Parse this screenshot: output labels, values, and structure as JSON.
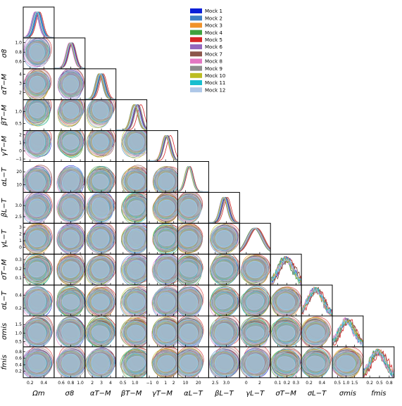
{
  "chart_data": {
    "type": "corner",
    "parameters": [
      {
        "label": "Ωm",
        "sub": "m",
        "range": [
          0.1,
          0.55
        ],
        "ticks": [
          0.2,
          0.4
        ],
        "tick_labels": [
          "0.2",
          "0.4"
        ]
      },
      {
        "label": "σ8",
        "sub": "8",
        "range": [
          0.45,
          1.1
        ],
        "ticks": [
          0.6,
          0.8,
          1.0
        ],
        "tick_labels": [
          "0.6",
          "0.8",
          "1.0"
        ]
      },
      {
        "label": "αT−M",
        "sub": "T−M",
        "range": [
          1.2,
          4.6
        ],
        "ticks": [
          2,
          3,
          4
        ],
        "tick_labels": [
          "2",
          "3",
          "4"
        ]
      },
      {
        "label": "βT−M",
        "sub": "T−M",
        "range": [
          0.2,
          1.5
        ],
        "ticks": [
          0.5,
          1.0
        ],
        "tick_labels": [
          "0.5",
          "1.0"
        ]
      },
      {
        "label": "γT−M",
        "sub": "T−M",
        "range": [
          -1.3,
          2.5
        ],
        "ticks": [
          -1,
          0,
          1,
          2
        ],
        "tick_labels": [
          "−1",
          "0",
          "1",
          "2"
        ]
      },
      {
        "label": "αL−T",
        "sub": "L−T",
        "range": [
          4,
          28
        ],
        "ticks": [
          10,
          20
        ],
        "tick_labels": [
          "10",
          "20"
        ]
      },
      {
        "label": "βL−T",
        "sub": "L−T",
        "range": [
          2.2,
          3.6
        ],
        "ticks": [
          2.5,
          3.0
        ],
        "tick_labels": [
          "2.5",
          "3.0"
        ]
      },
      {
        "label": "γL−T",
        "sub": "L−T",
        "range": [
          -1.0,
          3.6
        ],
        "ticks": [
          0,
          2
        ],
        "tick_labels": [
          "0",
          "2"
        ]
      },
      {
        "label": "σT−M",
        "sub": "T−M",
        "range": [
          0.02,
          0.36
        ],
        "ticks": [
          0.1,
          0.2,
          0.3
        ],
        "tick_labels": [
          "0.1",
          "0.2",
          "0.3"
        ]
      },
      {
        "label": "σL−T",
        "sub": "L−T",
        "range": [
          0.08,
          0.56
        ],
        "ticks": [
          0.2,
          0.4
        ],
        "tick_labels": [
          "0.2",
          "0.4"
        ]
      },
      {
        "label": "σmis",
        "sub": "mis",
        "range": [
          0.2,
          2.0
        ],
        "ticks": [
          0.5,
          1.0,
          1.5
        ],
        "tick_labels": [
          "0.5",
          "1.0",
          "1.5"
        ]
      },
      {
        "label": "fmis",
        "sub": "mis",
        "range": [
          0.0,
          0.95
        ],
        "ticks": [
          0.2,
          0.5,
          0.8
        ],
        "tick_labels": [
          "0.2",
          "0.5",
          "0.8"
        ]
      }
    ],
    "y_tick_labels": {
      "1": [
        "0.6",
        "0.8",
        "1.0"
      ],
      "2": [
        "2",
        "3",
        "4"
      ],
      "3": [
        "0.5",
        "1.0"
      ],
      "4": [
        "−1",
        "0",
        "1",
        "2"
      ],
      "5": [
        "10",
        "20"
      ],
      "6": [
        "2.5",
        "3.0"
      ],
      "7": [
        "0",
        "1",
        "2",
        "3"
      ],
      "8": [
        "0.1",
        "0.2",
        "0.3"
      ],
      "9": [
        "0.2",
        "0.4"
      ],
      "10": [
        "0.5",
        "1.0",
        "1.5"
      ],
      "11": [
        "0.2",
        "0.4",
        "0.6",
        "0.8"
      ]
    },
    "series": [
      {
        "name": "Mock 1",
        "color": "#0a1fd8",
        "means": [
          0.32,
          0.82,
          3.0,
          1.1,
          1.2,
          12.8,
          2.95,
          1.4,
          0.2,
          0.3,
          1.05,
          0.45
        ]
      },
      {
        "name": "Mock 2",
        "color": "#3f7fc4",
        "means": [
          0.28,
          0.78,
          2.7,
          0.95,
          1.0,
          12.0,
          2.85,
          1.2,
          0.18,
          0.28,
          1.0,
          0.42
        ]
      },
      {
        "name": "Mock 3",
        "color": "#f0922a",
        "means": [
          0.3,
          0.8,
          2.9,
          1.05,
          1.1,
          12.5,
          2.9,
          1.3,
          0.19,
          0.29,
          1.02,
          0.44
        ]
      },
      {
        "name": "Mock 4",
        "color": "#3ea23e",
        "means": [
          0.31,
          0.79,
          2.85,
          1.0,
          1.05,
          12.3,
          2.88,
          1.1,
          0.17,
          0.31,
          1.1,
          0.4
        ]
      },
      {
        "name": "Mock 5",
        "color": "#d62728",
        "means": [
          0.34,
          0.83,
          3.2,
          1.25,
          1.6,
          13.5,
          3.05,
          1.6,
          0.21,
          0.33,
          1.2,
          0.55
        ]
      },
      {
        "name": "Mock 6",
        "color": "#9467bd",
        "means": [
          0.29,
          0.81,
          2.95,
          1.08,
          1.15,
          12.7,
          2.92,
          1.3,
          0.18,
          0.3,
          1.0,
          0.43
        ]
      },
      {
        "name": "Mock 7",
        "color": "#8c564b",
        "means": [
          0.3,
          0.8,
          3.05,
          1.12,
          1.25,
          13.0,
          2.97,
          1.5,
          0.22,
          0.32,
          1.15,
          0.5
        ]
      },
      {
        "name": "Mock 8",
        "color": "#e377c2",
        "means": [
          0.27,
          0.77,
          2.8,
          0.98,
          0.95,
          12.2,
          2.86,
          1.2,
          0.19,
          0.28,
          0.95,
          0.41
        ]
      },
      {
        "name": "Mock 9",
        "color": "#8c8c8c",
        "means": [
          0.33,
          0.84,
          3.1,
          1.15,
          1.3,
          13.2,
          3.0,
          1.4,
          0.2,
          0.31,
          1.08,
          0.47
        ]
      },
      {
        "name": "Mock 10",
        "color": "#bcbd22",
        "means": [
          0.3,
          0.79,
          2.75,
          0.96,
          1.0,
          12.1,
          2.87,
          1.3,
          0.18,
          0.29,
          1.05,
          0.45
        ]
      },
      {
        "name": "Mock 11",
        "color": "#17becf",
        "means": [
          0.31,
          0.8,
          2.95,
          1.05,
          1.1,
          12.6,
          2.91,
          1.3,
          0.19,
          0.3,
          1.02,
          0.44
        ]
      },
      {
        "name": "Mock 12",
        "color": "#aec7e8",
        "means": [
          0.3,
          0.8,
          2.9,
          1.05,
          1.1,
          12.5,
          2.9,
          1.3,
          0.19,
          0.3,
          1.0,
          0.44
        ]
      }
    ],
    "legend_position": "top-right",
    "grid": false
  }
}
